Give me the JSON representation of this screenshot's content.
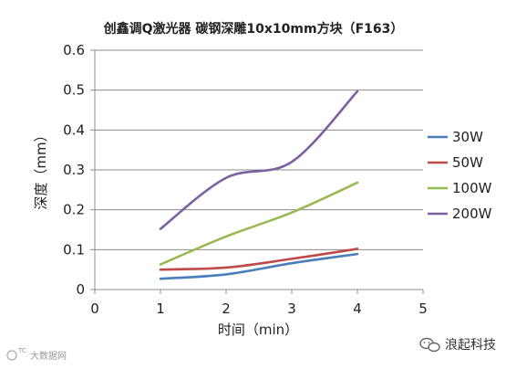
{
  "chart_data": {
    "type": "line",
    "title": "创鑫调Q激光器  碳钢深雕10x10mm方块（F163）",
    "xlabel": "时间（min）",
    "ylabel": "深度（mm）",
    "xlim": [
      0,
      5
    ],
    "ylim": [
      0,
      0.6
    ],
    "xticks": [
      "0",
      "1",
      "2",
      "3",
      "4",
      "5"
    ],
    "yticks": [
      "0",
      "0.1",
      "0.2",
      "0.3",
      "0.4",
      "0.5",
      "0.6"
    ],
    "grid": "horizontal",
    "legend_position": "right",
    "series": [
      {
        "name": "30W",
        "color": "#4a7ebb",
        "points": [
          [
            1,
            0.027
          ],
          [
            2,
            0.038
          ],
          [
            3,
            0.066
          ],
          [
            4,
            0.089
          ]
        ]
      },
      {
        "name": "50W",
        "color": "#be4b48",
        "points": [
          [
            1,
            0.05
          ],
          [
            2,
            0.055
          ],
          [
            3,
            0.077
          ],
          [
            4,
            0.102
          ]
        ]
      },
      {
        "name": "100W",
        "color": "#98b954",
        "points": [
          [
            1,
            0.063
          ],
          [
            2,
            0.133
          ],
          [
            3,
            0.193
          ],
          [
            4,
            0.268
          ]
        ]
      },
      {
        "name": "200W",
        "color": "#7d60a0",
        "points": [
          [
            1,
            0.152
          ],
          [
            2,
            0.28
          ],
          [
            3,
            0.32
          ],
          [
            4,
            0.497
          ]
        ]
      }
    ]
  },
  "watermark": {
    "text": "大数据网"
  },
  "brand": {
    "text": "浪起科技",
    "icon": "wechat-icon"
  }
}
